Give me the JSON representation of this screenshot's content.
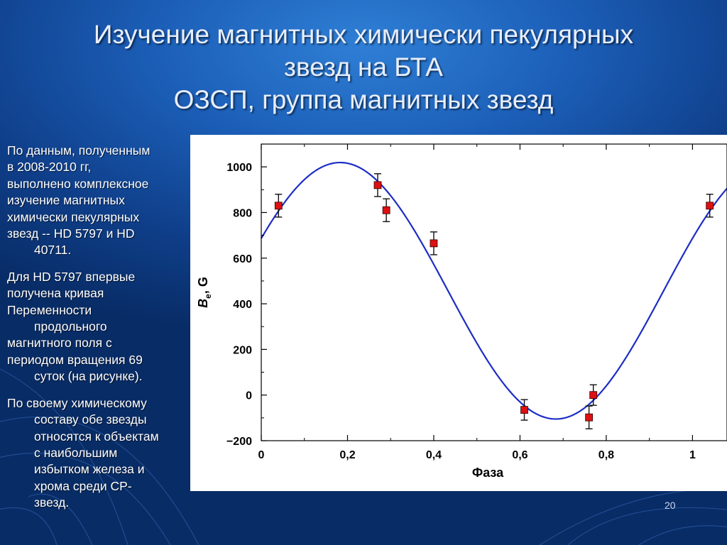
{
  "slide": {
    "title_lines": [
      "Изучение магнитных химически пекулярных",
      "звезд на БТА",
      "ОЗСП, группа магнитных звезд"
    ],
    "paragraphs": [
      [
        "По данным, полученным",
        "в 2008-2010 гг,",
        "выполнено комплексное",
        "изучение магнитных",
        "химически пекулярных",
        "звезд -- HD 5797 и HD",
        "40711."
      ],
      [
        "Для HD 5797 впервые",
        "получена кривая",
        "Переменности",
        "продольного",
        "магнитного поля с",
        "периодом вращения 69",
        "суток (на рисунке)."
      ],
      [
        "По своему химическому",
        "составу обе звезды",
        "относятся к объектам",
        "с наибольшим",
        "избытком железа и",
        "хрома среди CP-",
        "звезд."
      ]
    ],
    "slide_number": "20"
  },
  "chart_data": {
    "type": "scatter",
    "title": "",
    "xlabel": "Фаза",
    "ylabel_main": "B",
    "ylabel_sub": "e",
    "ylabel_unit": ", G",
    "xlim": [
      0,
      1.08
    ],
    "ylim": [
      -200,
      1100
    ],
    "x_ticks": [
      0,
      0.2,
      0.4,
      0.6,
      0.8,
      1
    ],
    "x_tick_labels": [
      "0",
      "0,2",
      "0,4",
      "0,6",
      "0,8",
      "1"
    ],
    "y_ticks": [
      -200,
      0,
      200,
      400,
      600,
      800,
      1000
    ],
    "y_tick_labels": [
      "−200",
      "0",
      "200",
      "400",
      "600",
      "800",
      "1000"
    ],
    "grid": false,
    "points": [
      {
        "x": 0.04,
        "y": 830,
        "err": 50
      },
      {
        "x": 0.27,
        "y": 920,
        "err": 50
      },
      {
        "x": 0.29,
        "y": 810,
        "err": 50
      },
      {
        "x": 0.4,
        "y": 665,
        "err": 50
      },
      {
        "x": 0.61,
        "y": -65,
        "err": 45
      },
      {
        "x": 0.76,
        "y": -98,
        "err": 50
      },
      {
        "x": 0.77,
        "y": 0,
        "err": 45
      },
      {
        "x": 1.04,
        "y": 830,
        "err": 50
      }
    ],
    "fit_curve": {
      "type": "sinusoid",
      "mean": 457,
      "amplitude": 562,
      "x_max": 0.183,
      "period": 1.0
    },
    "colors": {
      "points": "#dd1111",
      "curve": "#1c2ec4",
      "axes": "#000000"
    }
  }
}
